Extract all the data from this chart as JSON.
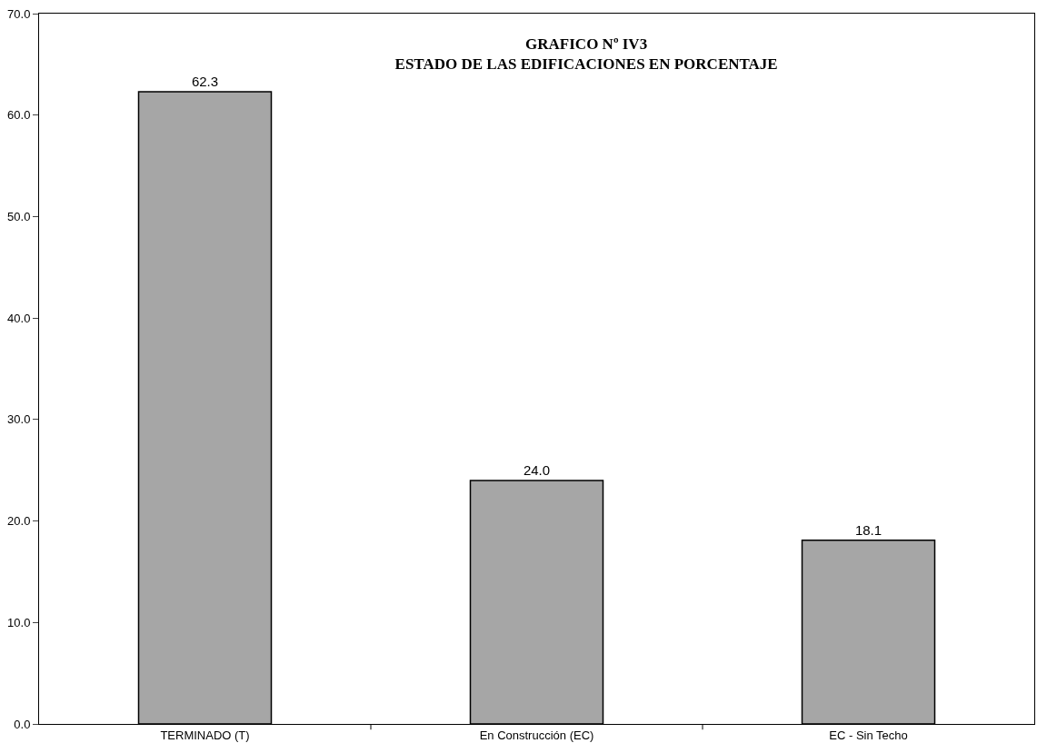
{
  "chart_data": {
    "type": "bar",
    "title": "GRAFICO Nº IV3\nESTADO DE LAS EDIFICACIONES EN PORCENTAJE",
    "categories": [
      "TERMINADO (T)",
      "En Construcción (EC)",
      "EC - Sin Techo"
    ],
    "values": [
      62.3,
      24.0,
      18.1
    ],
    "color": "#a6a6a6",
    "ylim": [
      0,
      70
    ],
    "yticks": [
      {
        "value": 0,
        "label": "0.0"
      },
      {
        "value": 10,
        "label": "10.0"
      },
      {
        "value": 20,
        "label": "20.0"
      },
      {
        "value": 30,
        "label": "30.0"
      },
      {
        "value": 40,
        "label": "40.0"
      },
      {
        "value": 50,
        "label": "50.0"
      },
      {
        "value": 60,
        "label": "60.0"
      },
      {
        "value": 70,
        "label": "70.0"
      }
    ],
    "value_labels": [
      "62.3",
      "24.0",
      "18.1"
    ]
  }
}
